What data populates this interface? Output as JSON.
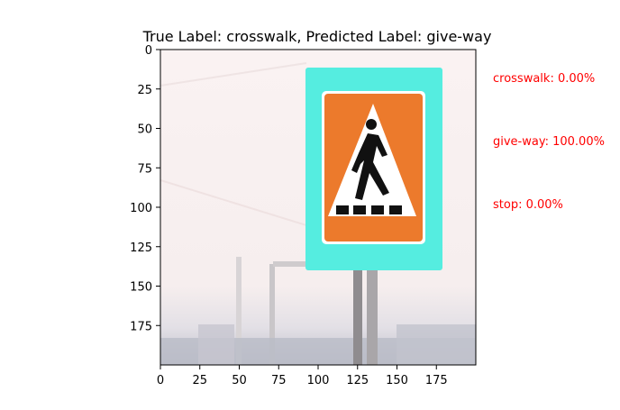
{
  "chart_data": {
    "type": "image",
    "title": "True Label: crosswalk, Predicted Label: give-way",
    "x_ticks": [
      0,
      25,
      50,
      75,
      100,
      125,
      150,
      175
    ],
    "y_ticks": [
      0,
      25,
      50,
      75,
      100,
      125,
      150,
      175
    ],
    "xlim": [
      0,
      200
    ],
    "ylim": [
      200,
      0
    ],
    "probabilities": [
      {
        "label": "crosswalk: 0.00%",
        "class": "crosswalk",
        "value": 0.0
      },
      {
        "label": "give-way: 100.00%",
        "class": "give-way",
        "value": 100.0
      },
      {
        "label": "stop: 0.00%",
        "class": "stop",
        "value": 0.0
      }
    ],
    "annotation_color": "#ff0000"
  }
}
